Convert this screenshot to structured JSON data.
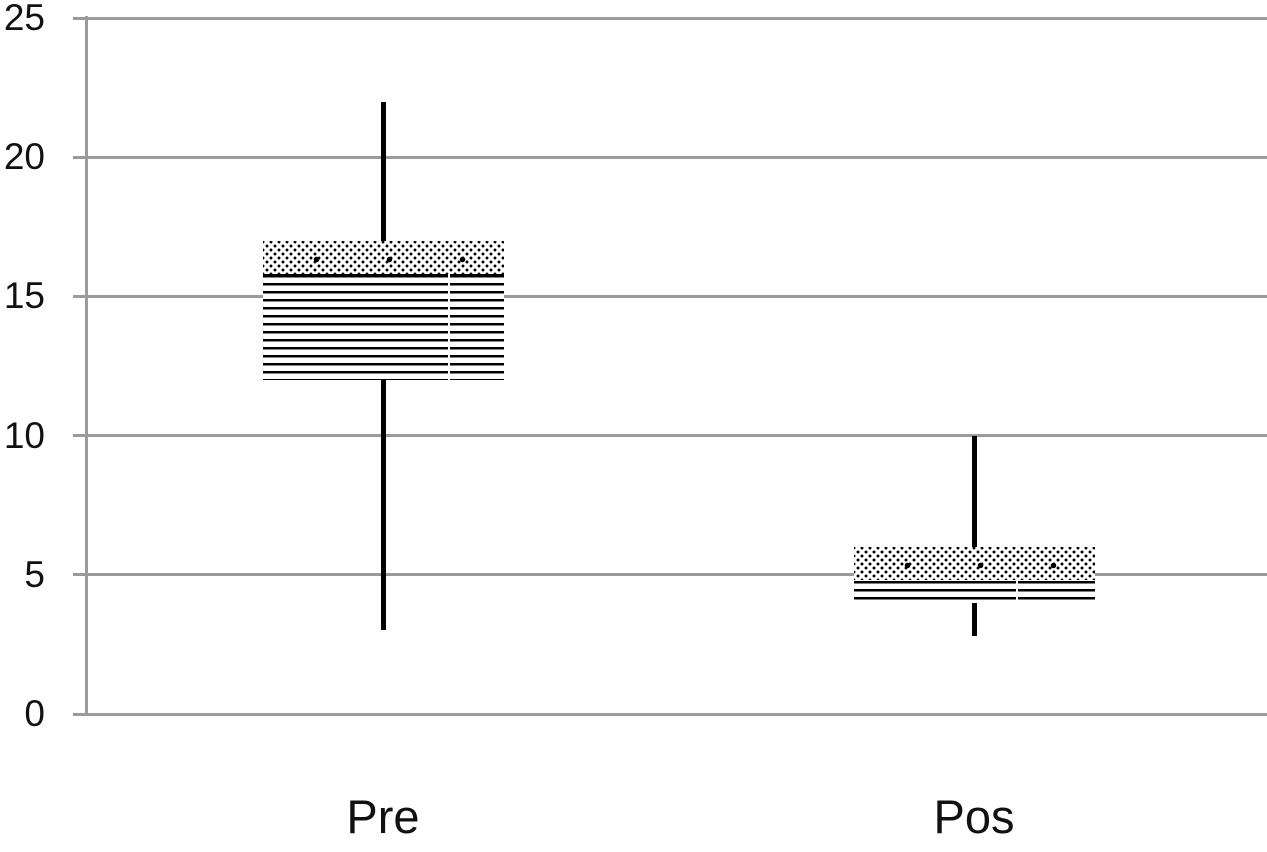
{
  "chart_data": {
    "type": "boxplot",
    "title": "",
    "xlabel": "",
    "ylabel": "",
    "categories": [
      "Pre",
      "Pos"
    ],
    "series": [
      {
        "name": "Pre",
        "whisker_low": 3,
        "q1": 12,
        "median": 15.8,
        "q3": 17,
        "whisker_high": 22
      },
      {
        "name": "Pos",
        "whisker_low": 2.8,
        "q1": 4,
        "median": 4.8,
        "q3": 6,
        "whisker_high": 10
      }
    ],
    "y_ticks": [
      0,
      5,
      10,
      15,
      20,
      25
    ],
    "ylim": [
      0,
      25
    ],
    "grid": true,
    "legend": false,
    "whisker_caps": false,
    "box_fill_upper_segment": "dotted-pattern",
    "box_fill_lower_segment": "horizontal-lines-pattern",
    "colors": {
      "ink": "#000000",
      "gridline": "#9b9b9b",
      "text": "#111111",
      "background": "#ffffff"
    }
  }
}
